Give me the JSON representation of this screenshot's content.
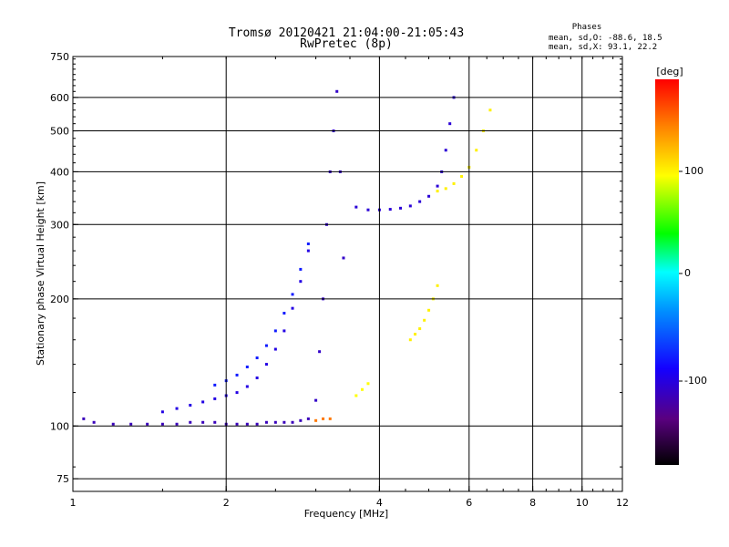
{
  "chart_data": {
    "type": "scatter",
    "title": "Tromsø 20120421 21:04:00-21:05:43",
    "subtitle": "RwPretec (8p)",
    "xlabel": "Frequency [MHz]",
    "ylabel": "Stationary phase Virtual Height [km]",
    "x_scale": "log",
    "y_scale": "log",
    "xlim": [
      1,
      12
    ],
    "ylim": [
      70,
      750
    ],
    "x_ticks": [
      "1",
      "2",
      "4",
      "6",
      "8",
      "10",
      "12"
    ],
    "y_ticks": [
      "75",
      "100",
      "200",
      "300",
      "400",
      "500",
      "600",
      "750"
    ],
    "grid": true,
    "phase_box": {
      "heading": "Phases",
      "line1": "mean, sd,O: -88.6, 18.5",
      "line2": "mean, sd,X:  93.1, 22.2"
    },
    "colorbar": {
      "label": "[deg]",
      "range": [
        -180,
        180
      ],
      "ticks": [
        "100",
        "0",
        "-100"
      ]
    },
    "traces": [
      {
        "x": [
          1.05,
          1.1,
          1.2,
          1.3,
          1.4,
          1.5,
          1.6,
          1.7,
          1.8,
          1.9,
          2.0,
          2.1,
          2.2,
          2.3,
          2.4,
          2.5,
          2.6,
          2.7,
          2.8,
          2.9
        ],
        "y": [
          104,
          102,
          101,
          101,
          101,
          101,
          101,
          102,
          102,
          102,
          101,
          101,
          101,
          101,
          102,
          102,
          102,
          102,
          103,
          104
        ],
        "phase": -115
      },
      {
        "x": [
          1.5,
          1.6,
          1.7,
          1.8,
          1.9,
          2.0,
          2.1,
          2.2,
          2.3,
          2.4,
          2.5,
          2.6,
          2.7,
          2.8,
          2.9
        ],
        "y": [
          108,
          110,
          112,
          114,
          116,
          118,
          120,
          124,
          130,
          140,
          152,
          168,
          190,
          220,
          260
        ],
        "phase": -100
      },
      {
        "x": [
          1.9,
          2.0,
          2.1,
          2.2,
          2.3,
          2.4,
          2.5,
          2.6,
          2.7,
          2.8,
          2.9
        ],
        "y": [
          125,
          128,
          132,
          138,
          145,
          155,
          168,
          185,
          205,
          235,
          270
        ],
        "phase": -80
      },
      {
        "x": [
          3.0,
          3.05,
          3.1,
          3.15,
          3.2,
          3.25,
          3.3,
          3.35,
          3.4
        ],
        "y": [
          115,
          150,
          200,
          300,
          400,
          500,
          620,
          400,
          250
        ],
        "phase": -110
      },
      {
        "x": [
          3.6,
          3.8,
          4.0,
          4.2,
          4.4,
          4.6,
          4.8,
          5.0,
          5.2,
          5.3,
          5.4,
          5.5,
          5.6
        ],
        "y": [
          330,
          325,
          325,
          326,
          328,
          332,
          340,
          350,
          370,
          400,
          450,
          520,
          600
        ],
        "phase": -105
      },
      {
        "x": [
          4.6,
          4.7,
          4.8,
          4.9,
          5.0,
          5.1,
          5.2
        ],
        "y": [
          160,
          165,
          170,
          178,
          188,
          200,
          215
        ],
        "phase": 95
      },
      {
        "x": [
          5.2,
          5.4,
          5.6,
          5.8,
          6.0,
          6.2,
          6.4,
          6.6
        ],
        "y": [
          360,
          365,
          375,
          390,
          410,
          450,
          500,
          560
        ],
        "phase": 95
      },
      {
        "x": [
          3.0,
          3.1,
          3.2
        ],
        "y": [
          103,
          104,
          104
        ],
        "phase": 140
      },
      {
        "x": [
          3.6,
          3.7,
          3.8
        ],
        "y": [
          118,
          122,
          126
        ],
        "phase": 90
      }
    ]
  }
}
